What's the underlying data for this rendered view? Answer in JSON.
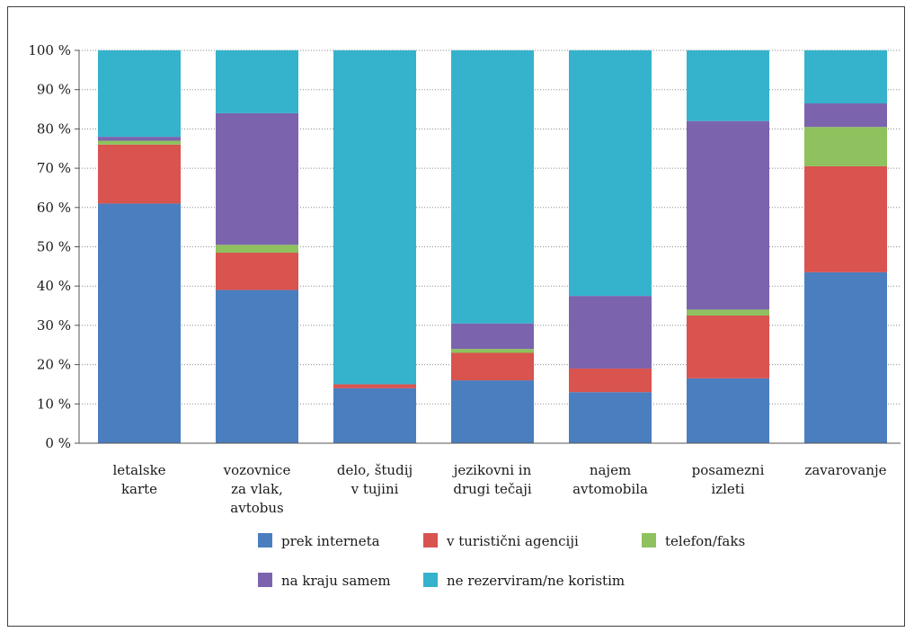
{
  "chart_data": {
    "type": "bar",
    "stacked": true,
    "categories": [
      [
        "letalske",
        "karte"
      ],
      [
        "vozovnice",
        "za vlak,",
        "avtobus"
      ],
      [
        "delo, študij",
        "v tujini"
      ],
      [
        "jezikovni in",
        "drugi tečaji"
      ],
      [
        "najem",
        "avtomobila"
      ],
      [
        "posamezni",
        "izleti"
      ],
      [
        "zavarovanje"
      ]
    ],
    "series": [
      {
        "name": "prek interneta",
        "color": "#4a7ebf",
        "values": [
          61,
          39,
          14,
          16,
          13,
          16.5,
          43.5
        ]
      },
      {
        "name": "v turistični agenciji",
        "color": "#d9534f",
        "values": [
          15,
          9.5,
          1,
          7,
          6,
          16,
          27
        ]
      },
      {
        "name": "telefon/faks",
        "color": "#8fc15e",
        "values": [
          1,
          2,
          0,
          1,
          0,
          1.5,
          10
        ]
      },
      {
        "name": "na kraju samem",
        "color": "#7b64ad",
        "values": [
          1,
          33.5,
          0,
          6.5,
          18.5,
          48,
          6
        ]
      },
      {
        "name": "ne rezerviram/ne koristim",
        "color": "#35b3cc",
        "values": [
          22,
          16,
          85,
          69.5,
          62.5,
          18,
          13.5
        ]
      }
    ],
    "yticks": [
      "0 %",
      "10 %",
      "20 %",
      "30 %",
      "40 %",
      "50 %",
      "60 %",
      "70 %",
      "80 %",
      "90 %",
      "100 %"
    ],
    "ylim": [
      0,
      100
    ],
    "grid": true,
    "legend_position": "bottom"
  }
}
